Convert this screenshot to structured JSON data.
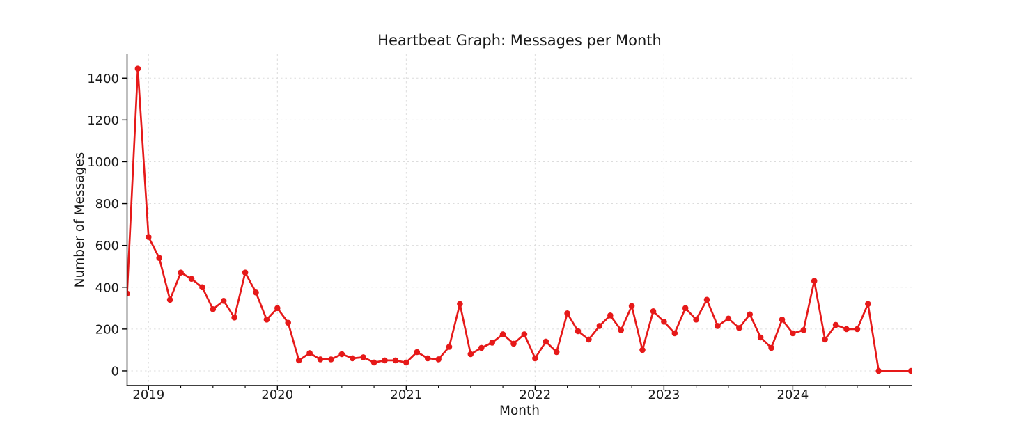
{
  "figure": {
    "background": "#ffffff"
  },
  "chart_data": {
    "type": "line",
    "title": "Heartbeat Graph: Messages per Month",
    "xlabel": "Month",
    "ylabel": "Number of Messages",
    "grid": true,
    "grid_style": "light-dashed",
    "grid_color": "#dcdcdc",
    "legend": false,
    "line_color": "#e61919",
    "marker": "circle",
    "spine_color": "#000000",
    "x_tick_labels": [
      "2019",
      "2020",
      "2021",
      "2022",
      "2023",
      "2024"
    ],
    "x_minor_tick_interval_months": 3,
    "y_ticks": [
      0,
      200,
      400,
      600,
      800,
      1000,
      1200,
      1400
    ],
    "xlim_months_from_2019_01": [
      -2.03,
      71.13
    ],
    "ylim": [
      -70,
      1514
    ],
    "series": [
      {
        "name": "Messages per Month",
        "points": [
          [
            "2018-11",
            370
          ],
          [
            "2018-12",
            1445
          ],
          [
            "2019-01",
            640
          ],
          [
            "2019-02",
            540
          ],
          [
            "2019-03",
            340
          ],
          [
            "2019-04",
            470
          ],
          [
            "2019-05",
            440
          ],
          [
            "2019-06",
            400
          ],
          [
            "2019-07",
            295
          ],
          [
            "2019-08",
            335
          ],
          [
            "2019-09",
            255
          ],
          [
            "2019-10",
            470
          ],
          [
            "2019-11",
            375
          ],
          [
            "2019-12",
            245
          ],
          [
            "2020-01",
            300
          ],
          [
            "2020-02",
            230
          ],
          [
            "2020-03",
            50
          ],
          [
            "2020-04",
            85
          ],
          [
            "2020-05",
            55
          ],
          [
            "2020-06",
            55
          ],
          [
            "2020-07",
            80
          ],
          [
            "2020-08",
            60
          ],
          [
            "2020-09",
            65
          ],
          [
            "2020-10",
            40
          ],
          [
            "2020-11",
            50
          ],
          [
            "2020-12",
            50
          ],
          [
            "2021-01",
            40
          ],
          [
            "2021-02",
            90
          ],
          [
            "2021-03",
            60
          ],
          [
            "2021-04",
            55
          ],
          [
            "2021-05",
            115
          ],
          [
            "2021-06",
            320
          ],
          [
            "2021-07",
            80
          ],
          [
            "2021-08",
            110
          ],
          [
            "2021-09",
            135
          ],
          [
            "2021-10",
            175
          ],
          [
            "2021-11",
            130
          ],
          [
            "2021-12",
            175
          ],
          [
            "2022-01",
            60
          ],
          [
            "2022-02",
            140
          ],
          [
            "2022-03",
            90
          ],
          [
            "2022-04",
            275
          ],
          [
            "2022-05",
            190
          ],
          [
            "2022-06",
            150
          ],
          [
            "2022-07",
            215
          ],
          [
            "2022-08",
            265
          ],
          [
            "2022-09",
            195
          ],
          [
            "2022-10",
            310
          ],
          [
            "2022-11",
            100
          ],
          [
            "2022-12",
            285
          ],
          [
            "2023-01",
            235
          ],
          [
            "2023-02",
            180
          ],
          [
            "2023-03",
            300
          ],
          [
            "2023-04",
            245
          ],
          [
            "2023-05",
            340
          ],
          [
            "2023-06",
            215
          ],
          [
            "2023-07",
            250
          ],
          [
            "2023-08",
            205
          ],
          [
            "2023-09",
            270
          ],
          [
            "2023-10",
            160
          ],
          [
            "2023-11",
            110
          ],
          [
            "2023-12",
            245
          ],
          [
            "2024-01",
            180
          ],
          [
            "2024-02",
            195
          ],
          [
            "2024-03",
            430
          ],
          [
            "2024-04",
            150
          ],
          [
            "2024-05",
            220
          ],
          [
            "2024-06",
            200
          ],
          [
            "2024-07",
            200
          ],
          [
            "2024-08",
            320
          ],
          [
            "2024-09",
            0
          ],
          [
            "2024-12",
            0
          ]
        ]
      }
    ]
  }
}
